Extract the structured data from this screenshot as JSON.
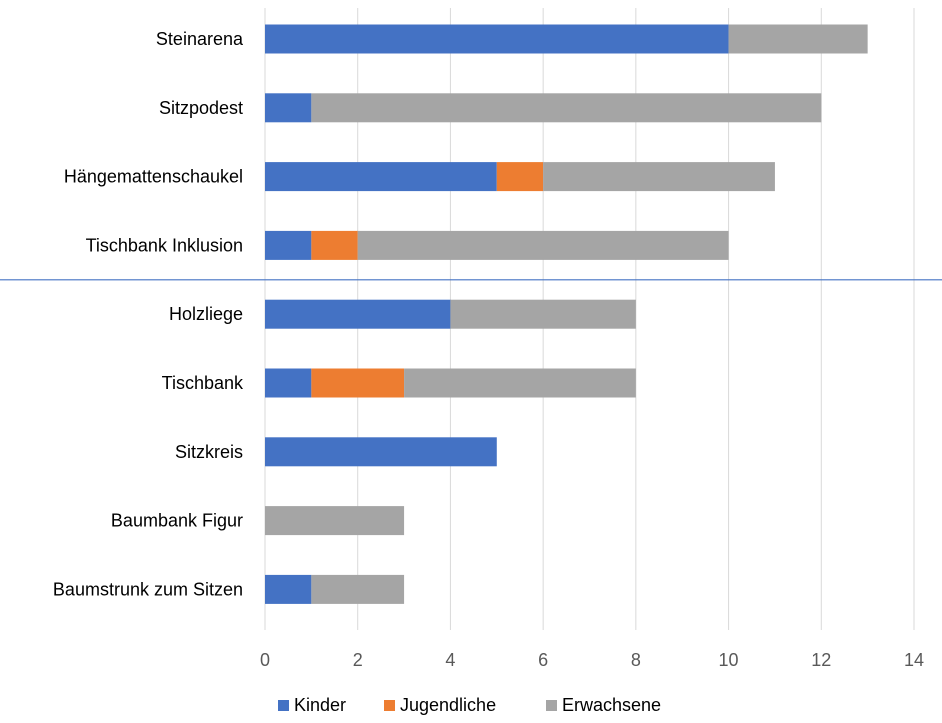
{
  "chart_data": {
    "type": "bar",
    "orientation": "horizontal",
    "stacked": true,
    "categories": [
      "Steinarena",
      "Sitzpodest",
      "Hängemattenschaukel",
      "Tischbank Inklusion",
      "Holzliege",
      "Tischbank",
      "Sitzkreis",
      "Baumbank Figur",
      "Baumstrunk zum Sitzen"
    ],
    "series": [
      {
        "name": "Kinder",
        "color": "#4472C4",
        "values": [
          10,
          1,
          5,
          1,
          4,
          1,
          5,
          0,
          1
        ]
      },
      {
        "name": "Jugendliche",
        "color": "#ED7D31",
        "values": [
          0,
          0,
          1,
          1,
          0,
          2,
          0,
          0,
          0
        ]
      },
      {
        "name": "Erwachsene",
        "color": "#A5A5A5",
        "values": [
          3,
          11,
          5,
          8,
          4,
          5,
          0,
          3,
          2
        ]
      }
    ],
    "x_ticks": [
      "0",
      "2",
      "4",
      "6",
      "8",
      "10",
      "12",
      "14"
    ],
    "xlim": [
      0,
      14
    ],
    "grid": "vertical",
    "legend_position": "bottom",
    "separator_line_color": "#4472C4"
  }
}
